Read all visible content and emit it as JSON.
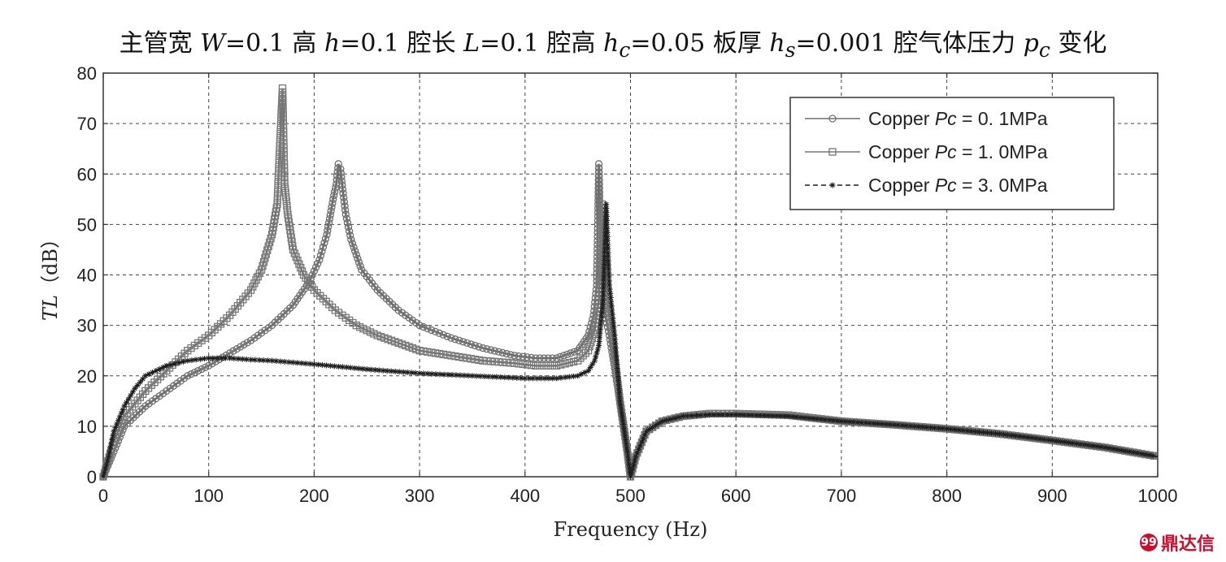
{
  "title": {
    "p1": "主管宽 ",
    "W": "W",
    "p2": "=0.1 高 ",
    "h": "h",
    "p3": "=0.1 腔长 ",
    "L": "L",
    "p4": "=0.1 腔高 ",
    "hc": "h",
    "hc_sub": "c",
    "p5": "=0.05 板厚 ",
    "hs": "h",
    "hs_sub": "s",
    "p6": "=0.001 腔气体压力 ",
    "pc": "p",
    "pc_sub": "c",
    "p7": " 变化"
  },
  "watermark": "鼎达信",
  "chart_data": {
    "type": "line",
    "xlabel": "Frequency (Hz)",
    "ylabel_italic": "TL",
    "ylabel_rest": "（dB）",
    "xlim": [
      0,
      1000
    ],
    "ylim": [
      0,
      80
    ],
    "xticks": [
      "0",
      "100",
      "200",
      "300",
      "400",
      "500",
      "600",
      "700",
      "800",
      "900",
      "1000"
    ],
    "yticks": [
      "0",
      "10",
      "20",
      "30",
      "40",
      "50",
      "60",
      "70",
      "80"
    ],
    "grid": true,
    "legend_position": "top-right",
    "series": [
      {
        "name": "Copper Pc = 0. 1MPa",
        "legend_prefix": "Copper ",
        "legend_italic": "Pc",
        "legend_suffix": " = 0. 1MPa",
        "marker": "circle",
        "dash": "solid",
        "x": [
          0,
          10,
          20,
          40,
          60,
          80,
          100,
          120,
          140,
          160,
          180,
          195,
          205,
          212,
          218,
          221,
          223,
          225,
          227,
          230,
          235,
          245,
          260,
          280,
          300,
          330,
          360,
          390,
          410,
          430,
          450,
          460,
          465,
          468,
          470,
          472,
          475,
          480,
          490,
          497,
          500,
          505,
          515,
          530,
          550,
          575,
          600,
          650,
          700,
          750,
          800,
          850,
          900,
          950,
          1000
        ],
        "y": [
          0,
          5,
          10,
          14,
          17,
          20,
          22,
          24.5,
          27,
          30,
          34,
          38.5,
          43,
          48,
          55,
          58,
          62,
          61,
          57,
          52,
          47,
          41,
          37,
          33,
          30,
          27.5,
          25.5,
          24,
          23.5,
          23.5,
          25,
          28,
          32,
          38,
          62,
          42,
          33,
          28,
          15,
          5,
          0,
          4,
          9,
          11,
          12,
          12.5,
          12.5,
          12.2,
          11,
          10.3,
          9.5,
          8.5,
          7.2,
          5.8,
          4
        ]
      },
      {
        "name": "Copper Pc = 1. 0MPa",
        "legend_prefix": "Copper ",
        "legend_italic": "Pc",
        "legend_suffix": " = 1. 0MPa",
        "marker": "square",
        "dash": "solid",
        "x": [
          0,
          10,
          20,
          40,
          60,
          80,
          100,
          120,
          140,
          150,
          160,
          165,
          168,
          170,
          172,
          175,
          180,
          190,
          200,
          220,
          240,
          260,
          280,
          300,
          330,
          360,
          390,
          410,
          430,
          450,
          460,
          466,
          470,
          473,
          476,
          480,
          490,
          497,
          500,
          505,
          515,
          530,
          550,
          575,
          600,
          650,
          700,
          750,
          800,
          850,
          900,
          950,
          1000
        ],
        "y": [
          0,
          7,
          12,
          17,
          21,
          25,
          28,
          32,
          37,
          41,
          48,
          54,
          68,
          77,
          58,
          52,
          45,
          40,
          37,
          33,
          30,
          28,
          26.5,
          25,
          24,
          23,
          22.5,
          22,
          22,
          23,
          25,
          29,
          35,
          54,
          40,
          32,
          15,
          5,
          0,
          4,
          9,
          11,
          12,
          12.5,
          12.5,
          12.2,
          11,
          10.3,
          9.5,
          8.5,
          7.2,
          5.8,
          4
        ]
      },
      {
        "name": "Copper Pc = 3. 0MPa",
        "legend_prefix": "Copper ",
        "legend_italic": "Pc",
        "legend_suffix": " = 3. 0MPa",
        "marker": "star",
        "dash": "dashed",
        "x": [
          0,
          5,
          10,
          20,
          30,
          40,
          60,
          80,
          100,
          120,
          140,
          160,
          200,
          250,
          300,
          350,
          400,
          430,
          450,
          460,
          466,
          470,
          474,
          477,
          480,
          485,
          490,
          497,
          500,
          505,
          515,
          530,
          550,
          575,
          600,
          650,
          700,
          750,
          800,
          850,
          900,
          950,
          1000
        ],
        "y": [
          0,
          4,
          9,
          14,
          17.5,
          20,
          22,
          23,
          23.5,
          23.5,
          23.2,
          23,
          22.3,
          21.3,
          20.5,
          20,
          19.5,
          19.5,
          20,
          21,
          23,
          26,
          35,
          54,
          38,
          28,
          15,
          5,
          0,
          4,
          9,
          11,
          12,
          12.3,
          12.3,
          12,
          11,
          10.3,
          9.5,
          8.5,
          7.2,
          5.8,
          4
        ]
      }
    ]
  }
}
